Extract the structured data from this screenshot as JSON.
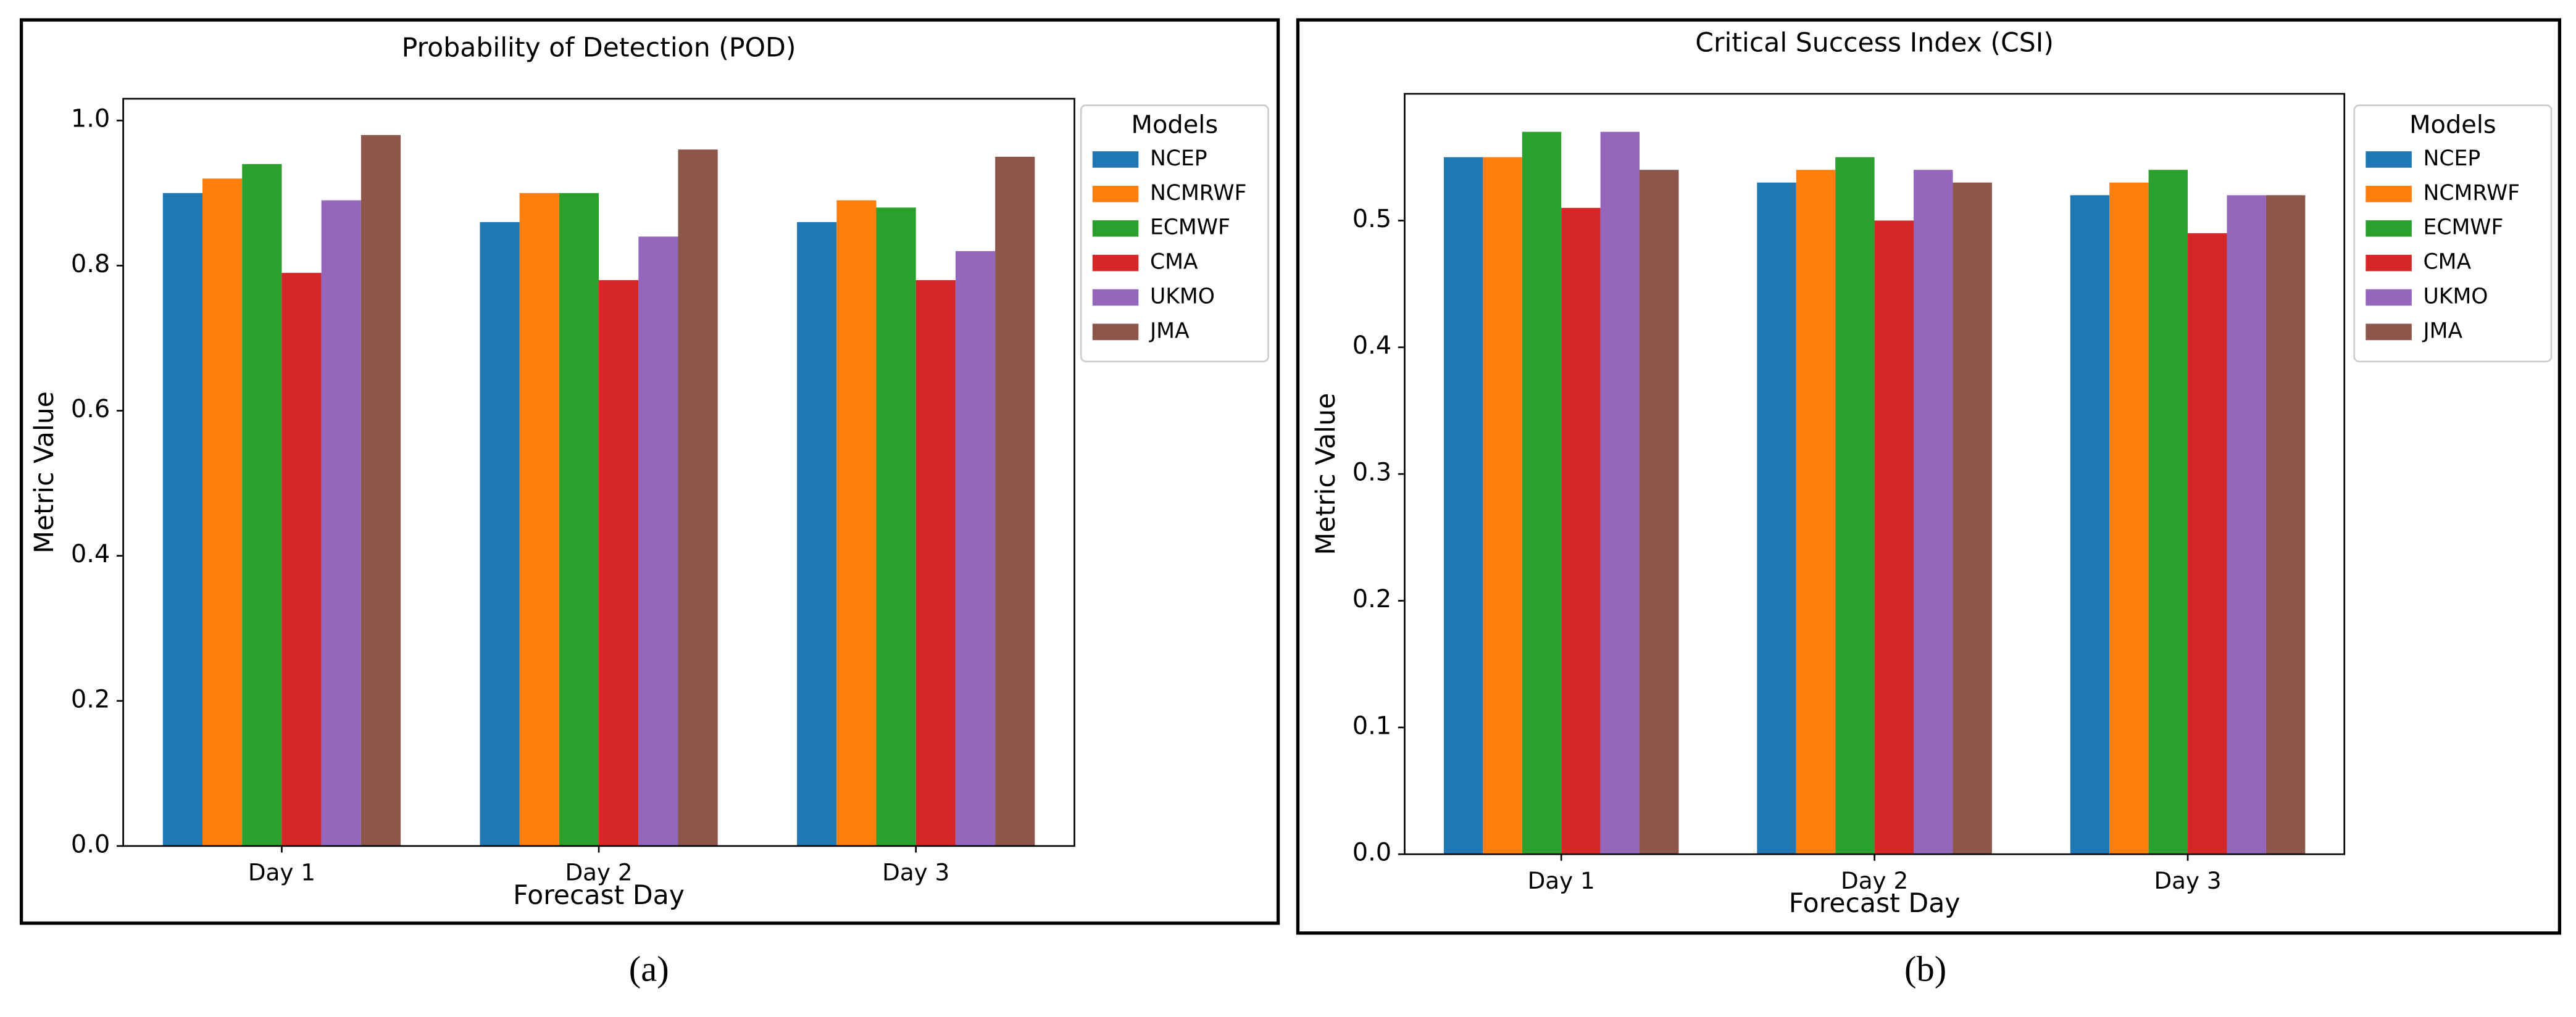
{
  "chart_data": [
    {
      "type": "bar",
      "title": "Probability of Detection (POD)",
      "x_label": "Forecast Day",
      "y_label": "Metric Value",
      "legend_title": "Models",
      "legend": "upper right outside",
      "caption": "(a)",
      "categories": [
        "Day 1",
        "Day 2",
        "Day 3"
      ],
      "series": [
        {
          "name": "NCEP",
          "color": "#1f77b4",
          "values": [
            0.9,
            0.86,
            0.86
          ]
        },
        {
          "name": "NCMRWF",
          "color": "#ff7f0e",
          "values": [
            0.92,
            0.9,
            0.89
          ]
        },
        {
          "name": "ECMWF",
          "color": "#2ca02c",
          "values": [
            0.94,
            0.9,
            0.88
          ]
        },
        {
          "name": "CMA",
          "color": "#d62728",
          "values": [
            0.79,
            0.78,
            0.78
          ]
        },
        {
          "name": "UKMO",
          "color": "#9467bd",
          "values": [
            0.89,
            0.84,
            0.82
          ]
        },
        {
          "name": "JMA",
          "color": "#8c564b",
          "values": [
            0.98,
            0.96,
            0.95
          ]
        }
      ],
      "ylim": [
        0,
        1.03
      ],
      "yticks": [
        {
          "value": 0,
          "label": "0.0"
        },
        0.2,
        0.4,
        0.6,
        0.8,
        {
          "value": 1,
          "label": "1.0"
        }
      ],
      "grid": false
    },
    {
      "type": "bar",
      "title": "Critical Success Index (CSI)",
      "x_label": "Forecast Day",
      "y_label": "Metric Value",
      "legend_title": "Models",
      "legend": "upper right outside",
      "caption": "(b)",
      "categories": [
        "Day 1",
        "Day 2",
        "Day 3"
      ],
      "series": [
        {
          "name": "NCEP",
          "color": "#1f77b4",
          "values": [
            0.55,
            0.53,
            0.52
          ]
        },
        {
          "name": "NCMRWF",
          "color": "#ff7f0e",
          "values": [
            0.55,
            0.54,
            0.53
          ]
        },
        {
          "name": "ECMWF",
          "color": "#2ca02c",
          "values": [
            0.57,
            0.55,
            0.54
          ]
        },
        {
          "name": "CMA",
          "color": "#d62728",
          "values": [
            0.51,
            0.5,
            0.49
          ]
        },
        {
          "name": "UKMO",
          "color": "#9467bd",
          "values": [
            0.57,
            0.54,
            0.52
          ]
        },
        {
          "name": "JMA",
          "color": "#8c564b",
          "values": [
            0.54,
            0.53,
            0.52
          ]
        }
      ],
      "ylim": [
        0,
        0.6
      ],
      "yticks": [
        {
          "value": 0,
          "label": "0.0"
        },
        0.1,
        0.2,
        0.3,
        0.4,
        0.5
      ],
      "grid": false
    }
  ]
}
